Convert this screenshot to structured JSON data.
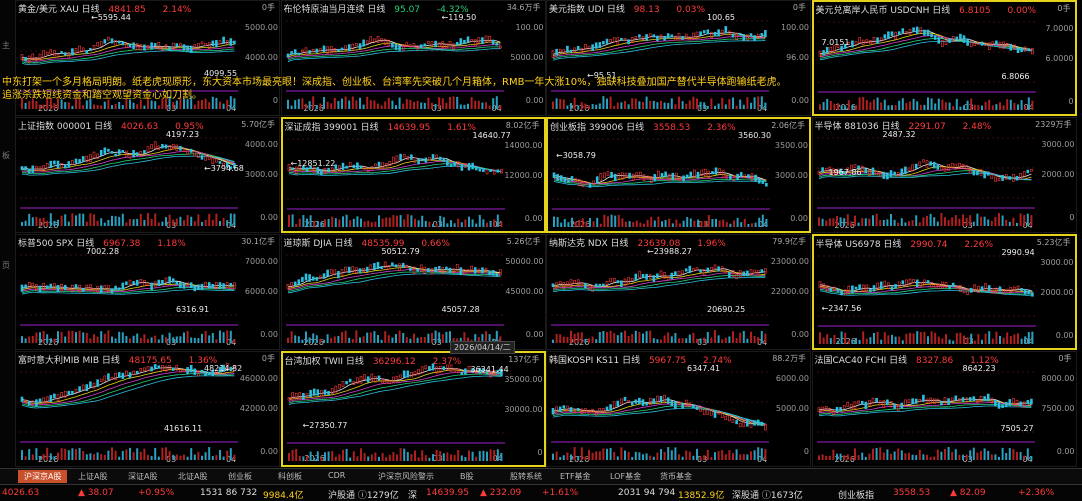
{
  "banner": {
    "line1": "中东打架一个多月格局明朗。纸老虎现原形，东大资本市场最亮眼！深成指、创业板、台湾率先突破几个月箱体，RMB一年大涨10%，独缺科技叠加国产替代半导体跑输纸老虎。",
    "line2": "追涨杀跌短线资金和踏空观望资金心如刀割。"
  },
  "date_label": "2026/04/14/二",
  "left_labels": [
    "主",
    "板",
    "页"
  ],
  "panels": [
    {
      "id": "gold",
      "name": "黄金/美元 XAU 日线",
      "price": "4841.85",
      "change": "2.14%",
      "vol": "0手",
      "dir": "up",
      "hl": false,
      "axis": [
        "5000.00",
        "4000.00",
        "0"
      ],
      "ann": [
        {
          "t": "←5595.44",
          "x": 75,
          "y": 12
        },
        {
          "t": "4099.55",
          "x": 188,
          "y": 68
        }
      ],
      "year": "2026",
      "m3": "03",
      "m4": "04"
    },
    {
      "id": "brent",
      "name": "布伦特原油当月连续 日线",
      "price": "95.07",
      "change": "-4.32%",
      "vol": "34.6万手",
      "dir": "dn",
      "hl": false,
      "axis": [
        "100.00",
        "5000.00",
        "0.00"
      ],
      "ann": [
        {
          "t": "←119.50",
          "x": 160,
          "y": 12
        }
      ],
      "year": "2026",
      "m3": "03",
      "m4": "04"
    },
    {
      "id": "dxy",
      "name": "美元指数 UDI 日线",
      "price": "98.13",
      "change": "0.03%",
      "vol": "0手",
      "dir": "up",
      "hl": false,
      "axis": [
        "100.00",
        "96.00",
        "0.00"
      ],
      "ann": [
        {
          "t": "100.65",
          "x": 160,
          "y": 12
        },
        {
          "t": "←95.51",
          "x": 40,
          "y": 70
        }
      ],
      "year": "2026",
      "m3": "03",
      "m4": "04"
    },
    {
      "id": "usdcnh",
      "name": "美元兑离岸人民币 USDCNH 日线",
      "price": "6.8105",
      "change": "0.00%",
      "vol": "0手",
      "dir": "up",
      "hl": true,
      "axis": [
        "7.0000",
        "6.0000",
        "0"
      ],
      "ann": [
        {
          "t": "7.0151",
          "x": 8,
          "y": 36
        },
        {
          "t": "6.8066",
          "x": 188,
          "y": 70
        }
      ],
      "year": "2026",
      "m3": "03",
      "m4": "04"
    },
    {
      "id": "sh",
      "name": "上证指数 000001 日线",
      "price": "4026.63",
      "change": "0.95%",
      "vol": "5.70亿手",
      "dir": "up",
      "hl": false,
      "axis": [
        "4000.00",
        "3000.00",
        "0.00"
      ],
      "ann": [
        {
          "t": "4197.23",
          "x": 150,
          "y": 12
        },
        {
          "t": "←3794.68",
          "x": 188,
          "y": 46
        }
      ],
      "year": "2026",
      "m3": "03",
      "m4": "04"
    },
    {
      "id": "sz",
      "name": "深证成指 399001 日线",
      "price": "14639.95",
      "change": "1.61%",
      "vol": "8.02亿手",
      "dir": "up",
      "hl": true,
      "axis": [
        "14000.00",
        "12000.00",
        "0.00"
      ],
      "ann": [
        {
          "t": "14640.77",
          "x": 190,
          "y": 12
        },
        {
          "t": "←12851.22",
          "x": 8,
          "y": 40
        }
      ],
      "year": "2026",
      "m3": "03",
      "m4": "04"
    },
    {
      "id": "cyb",
      "name": "创业板指 399006 日线",
      "price": "3558.53",
      "change": "2.36%",
      "vol": "2.06亿手",
      "dir": "up",
      "hl": true,
      "axis": [
        "3500.00",
        "3000.00",
        "0.00"
      ],
      "ann": [
        {
          "t": "3560.30",
          "x": 190,
          "y": 12
        },
        {
          "t": "←3058.79",
          "x": 8,
          "y": 32
        }
      ],
      "year": "2026",
      "m3": "03",
      "m4": "04"
    },
    {
      "id": "semi",
      "name": "半导体 881036 日线",
      "price": "2291.07",
      "change": "2.48%",
      "vol": "2329万手",
      "dir": "up",
      "hl": false,
      "axis": [
        "3000.00",
        "2000.00",
        "0"
      ],
      "ann": [
        {
          "t": "2487.32",
          "x": 70,
          "y": 12
        },
        {
          "t": "1967.86",
          "x": 16,
          "y": 50
        }
      ],
      "year": "2026",
      "m3": "03",
      "m4": "04"
    },
    {
      "id": "spx",
      "name": "标普500 SPX 日线",
      "price": "6967.38",
      "change": "1.18%",
      "vol": "30.1亿手",
      "dir": "up",
      "hl": false,
      "axis": [
        "7000.00",
        "6000.00",
        "0.00"
      ],
      "ann": [
        {
          "t": "7002.28",
          "x": 70,
          "y": 12
        },
        {
          "t": "6316.91",
          "x": 160,
          "y": 70
        }
      ],
      "year": "2026",
      "m3": "03",
      "m4": "04"
    },
    {
      "id": "dji",
      "name": "道琼斯 DJIA 日线",
      "price": "48535.99",
      "change": "0.66%",
      "vol": "5.26亿手",
      "dir": "up",
      "hl": false,
      "axis": [
        "50000.00",
        "45000.00",
        "0.00"
      ],
      "ann": [
        {
          "t": "50512.79",
          "x": 100,
          "y": 12
        },
        {
          "t": "45057.28",
          "x": 160,
          "y": 70
        }
      ],
      "year": "2026",
      "m3": "03",
      "m4": "04"
    },
    {
      "id": "ndx",
      "name": "纳斯达克 NDX 日线",
      "price": "23639.08",
      "change": "1.96%",
      "vol": "79.9亿手",
      "dir": "up",
      "hl": false,
      "axis": [
        "23000.00",
        "22000.00",
        "0.00"
      ],
      "ann": [
        {
          "t": "←23988.27",
          "x": 100,
          "y": 12
        },
        {
          "t": "20690.25",
          "x": 160,
          "y": 70
        }
      ],
      "year": "2026",
      "m3": "03",
      "m4": "04"
    },
    {
      "id": "sox",
      "name": "半导体 US6978 日线",
      "price": "2990.74",
      "change": "2.26%",
      "vol": "5.23亿手",
      "dir": "up",
      "hl": true,
      "axis": [
        "3000.00",
        "2000.00",
        "0.00"
      ],
      "ann": [
        {
          "t": "2990.94",
          "x": 188,
          "y": 12
        },
        {
          "t": "←2347.56",
          "x": 8,
          "y": 68
        }
      ],
      "year": "2026",
      "m3": "03",
      "m4": "04"
    },
    {
      "id": "mib",
      "name": "富时意大利MIB MIB 日线",
      "price": "48175.65",
      "change": "1.36%",
      "vol": "0手",
      "dir": "up",
      "hl": false,
      "axis": [
        "46000.00",
        "42000.00",
        "0.00"
      ],
      "ann": [
        {
          "t": "48214.82",
          "x": 188,
          "y": 12
        },
        {
          "t": "41616.11",
          "x": 148,
          "y": 72
        }
      ],
      "year": "2026",
      "m3": "03",
      "m4": "04"
    },
    {
      "id": "twii",
      "name": "台湾加权 TWII 日线",
      "price": "36296.12",
      "change": "2.37%",
      "vol": "137亿手",
      "dir": "up",
      "hl": true,
      "axis": [
        "35000.00",
        "30000.00",
        "0"
      ],
      "ann": [
        {
          "t": "36341.44",
          "x": 188,
          "y": 12
        },
        {
          "t": "←27350.77",
          "x": 20,
          "y": 68
        }
      ],
      "year": "2026",
      "m3": "03",
      "m4": "04"
    },
    {
      "id": "ks11",
      "name": "韩国KOSPI KS11 日线",
      "price": "5967.75",
      "change": "2.74%",
      "vol": "88.2万手",
      "dir": "up",
      "hl": false,
      "axis": [
        "6000.00",
        "5000.00",
        "0"
      ],
      "ann": [
        {
          "t": "6347.41",
          "x": 140,
          "y": 12
        }
      ],
      "year": "2026",
      "m3": "03",
      "m4": "04"
    },
    {
      "id": "fchi",
      "name": "法国CAC40 FCHI 日线",
      "price": "8327.86",
      "change": "1.12%",
      "vol": "0手",
      "dir": "up",
      "hl": false,
      "axis": [
        "8000.00",
        "7500.00",
        "0.00"
      ],
      "ann": [
        {
          "t": "8642.23",
          "x": 150,
          "y": 12
        },
        {
          "t": "7505.27",
          "x": 188,
          "y": 72
        }
      ],
      "year": "2026",
      "m3": "03",
      "m4": "04"
    }
  ],
  "tabs": [
    "沪深京A股",
    "上证A股",
    "深证A股",
    "北证A股",
    "创业板",
    "科创板",
    "CDR",
    "沪深京风险警示",
    "B股",
    "股转系统",
    "ETF基金",
    "LOF基金",
    "货币基金"
  ],
  "status": [
    {
      "t": "4026.63",
      "c": "#ff3b3b"
    },
    {
      "t": "▲ 38.07",
      "c": "#ff3b3b"
    },
    {
      "t": "+0.95%",
      "c": "#ff3b3b"
    },
    {
      "t": "1531 86 732",
      "c": "#ddd"
    },
    {
      "t": "9984.4亿",
      "c": "#ffd21a"
    },
    {
      "t": "沪股通 ⓘ1279亿",
      "c": "#ddd"
    },
    {
      "t": "深",
      "c": "#ddd"
    },
    {
      "t": "14639.95",
      "c": "#ff3b3b"
    },
    {
      "t": "▲ 232.09",
      "c": "#ff3b3b"
    },
    {
      "t": "+1.61%",
      "c": "#ff3b3b"
    },
    {
      "t": "2031 94 794",
      "c": "#ddd"
    },
    {
      "t": "13852.9亿",
      "c": "#ffd21a"
    },
    {
      "t": "深股通 ⓘ1673亿",
      "c": "#ddd"
    },
    {
      "t": "创业板指",
      "c": "#ddd"
    },
    {
      "t": "3558.53",
      "c": "#ff3b3b"
    },
    {
      "t": "▲ 82.09",
      "c": "#ff3b3b"
    },
    {
      "t": "+2.36%",
      "c": "#ff3b3b"
    }
  ],
  "colors": {
    "up": "#ff3b3b",
    "down": "#27d27a",
    "highlight": "#e6d21a"
  }
}
